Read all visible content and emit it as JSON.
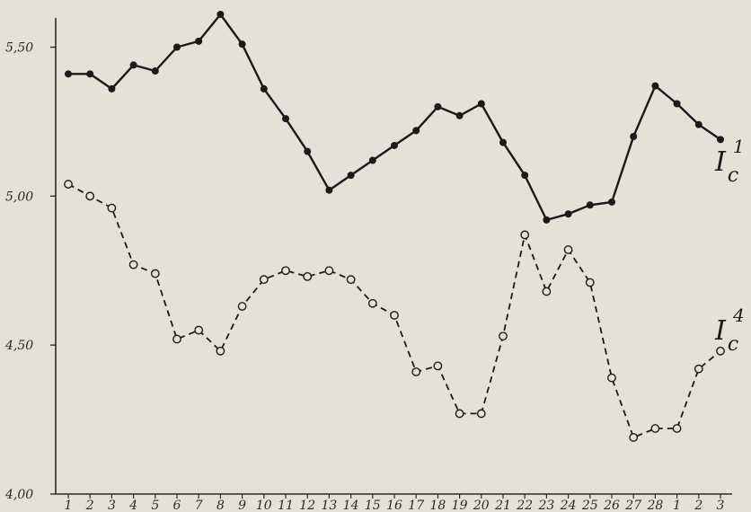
{
  "chart_data": {
    "type": "line",
    "title": "",
    "xlabel": "",
    "ylabel": "",
    "ylim": [
      4.0,
      5.7
    ],
    "grid": false,
    "categories": [
      "1",
      "2",
      "3",
      "4",
      "5",
      "6",
      "7",
      "8",
      "9",
      "10",
      "11",
      "12",
      "13",
      "14",
      "15",
      "16",
      "17",
      "18",
      "19",
      "20",
      "21",
      "22",
      "23",
      "24",
      "25",
      "26",
      "27",
      "28",
      "1",
      "2",
      "3"
    ],
    "y_ticks": [
      {
        "value": 4.0,
        "label": "4,00"
      },
      {
        "value": 4.5,
        "label": "4,50"
      },
      {
        "value": 5.0,
        "label": "5,00"
      },
      {
        "value": 5.5,
        "label": "5,50"
      }
    ],
    "series": [
      {
        "name": "I_c^1",
        "label_main": "I",
        "label_sub": "c",
        "label_sup": "1",
        "style": "solid",
        "marker": "filled",
        "color": "#1a1a1a",
        "values": [
          5.41,
          5.41,
          5.36,
          5.44,
          5.42,
          5.5,
          5.52,
          5.61,
          5.51,
          5.36,
          5.26,
          5.15,
          5.02,
          5.07,
          5.12,
          5.17,
          5.22,
          5.3,
          5.27,
          5.31,
          5.18,
          5.07,
          4.92,
          4.94,
          4.97,
          4.98,
          5.2,
          5.37,
          5.31,
          5.24,
          5.19
        ]
      },
      {
        "name": "I_c^4",
        "label_main": "I",
        "label_sub": "c",
        "label_sup": "4",
        "style": "dashed",
        "marker": "open",
        "color": "#1a1a1a",
        "values": [
          5.04,
          5.0,
          4.96,
          4.77,
          4.74,
          4.52,
          4.55,
          4.48,
          4.63,
          4.72,
          4.75,
          4.73,
          4.75,
          4.72,
          4.64,
          4.6,
          4.41,
          4.43,
          4.27,
          4.27,
          4.53,
          4.87,
          4.68,
          4.82,
          4.71,
          4.39,
          4.19,
          4.22,
          4.22,
          4.42,
          4.48
        ]
      }
    ]
  }
}
